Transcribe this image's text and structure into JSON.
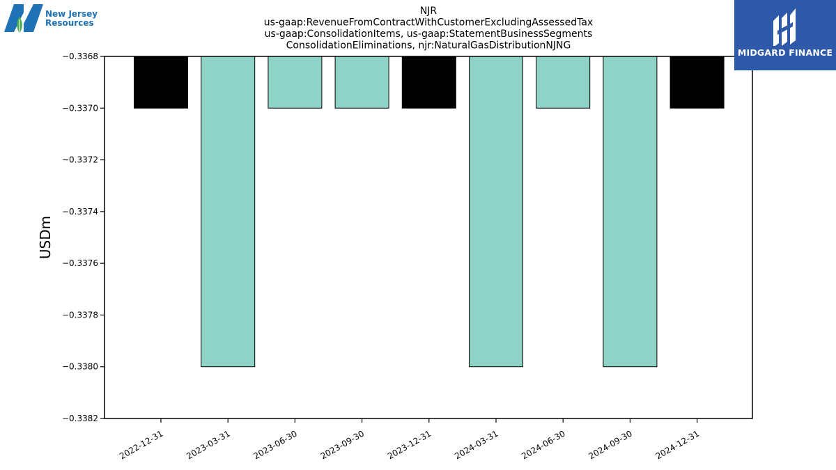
{
  "logos": {
    "left": {
      "name_line1": "New Jersey",
      "name_line2": "Resources",
      "brand_color": "#1f72b5",
      "leaf_color": "#4caf50"
    },
    "right": {
      "name": "MIDGARD FINANCE",
      "background_color": "#2e59a8"
    }
  },
  "chart_data": {
    "type": "bar",
    "title_lines": [
      "NJR",
      "us-gaap:RevenueFromContractWithCustomerExcludingAssessedTax",
      "us-gaap:ConsolidationItems, us-gaap:StatementBusinessSegments",
      "ConsolidationEliminations, njr:NaturalGasDistributionNJNG"
    ],
    "ylabel": "USDm",
    "xlabel": "",
    "ylim": [
      -0.3382,
      -0.3368
    ],
    "yticks": [
      -0.3368,
      -0.337,
      -0.3372,
      -0.3374,
      -0.3376,
      -0.3378,
      -0.338,
      -0.3382
    ],
    "ytick_labels": [
      "−0.3368",
      "−0.3370",
      "−0.3372",
      "−0.3374",
      "−0.3376",
      "−0.3378",
      "−0.3380",
      "−0.3382"
    ],
    "categories": [
      "2022-12-31",
      "2023-03-31",
      "2023-06-30",
      "2023-09-30",
      "2023-12-31",
      "2024-03-31",
      "2024-06-30",
      "2024-09-30",
      "2024-12-31"
    ],
    "values": [
      -0.337,
      -0.338,
      -0.337,
      -0.337,
      -0.337,
      -0.338,
      -0.337,
      -0.338,
      -0.337
    ],
    "bar_colors": [
      "#000000",
      "#8fd3c7",
      "#8fd3c7",
      "#8fd3c7",
      "#000000",
      "#8fd3c7",
      "#8fd3c7",
      "#8fd3c7",
      "#000000"
    ],
    "grid": false,
    "legend": "none"
  }
}
